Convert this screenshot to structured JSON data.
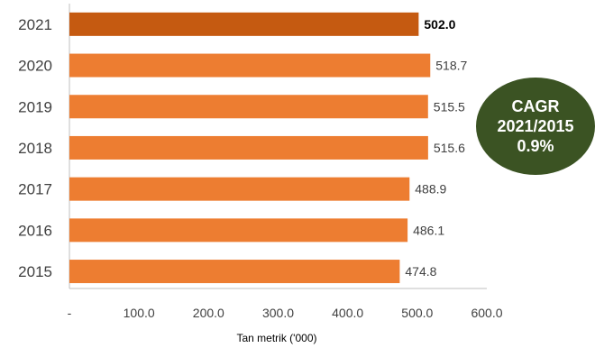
{
  "chart_data": {
    "type": "bar",
    "orientation": "horizontal",
    "categories": [
      "2021",
      "2020",
      "2019",
      "2018",
      "2017",
      "2016",
      "2015"
    ],
    "values": [
      502.0,
      518.7,
      515.5,
      515.6,
      488.9,
      486.1,
      474.8
    ],
    "value_labels": [
      "502.0",
      "518.7",
      "515.5",
      "515.6",
      "488.9",
      "486.1",
      "474.8"
    ],
    "highlight_index": 0,
    "xlabel": "Tan metrik ('000)",
    "xlim": [
      0,
      600
    ],
    "xticks": [
      0,
      100,
      200,
      300,
      400,
      500,
      600
    ],
    "xtick_labels": [
      "-",
      "100.0",
      "200.0",
      "300.0",
      "400.0",
      "500.0",
      "600.0"
    ],
    "grid": false,
    "colors": {
      "bar": "#ed7d31",
      "highlight": "#c55a11",
      "axis": "#bfbfbf",
      "text": "#404040"
    }
  },
  "callout": {
    "line1": "CAGR",
    "line2": "2021/2015",
    "line3": "0.9%",
    "color": "#3b5323"
  }
}
